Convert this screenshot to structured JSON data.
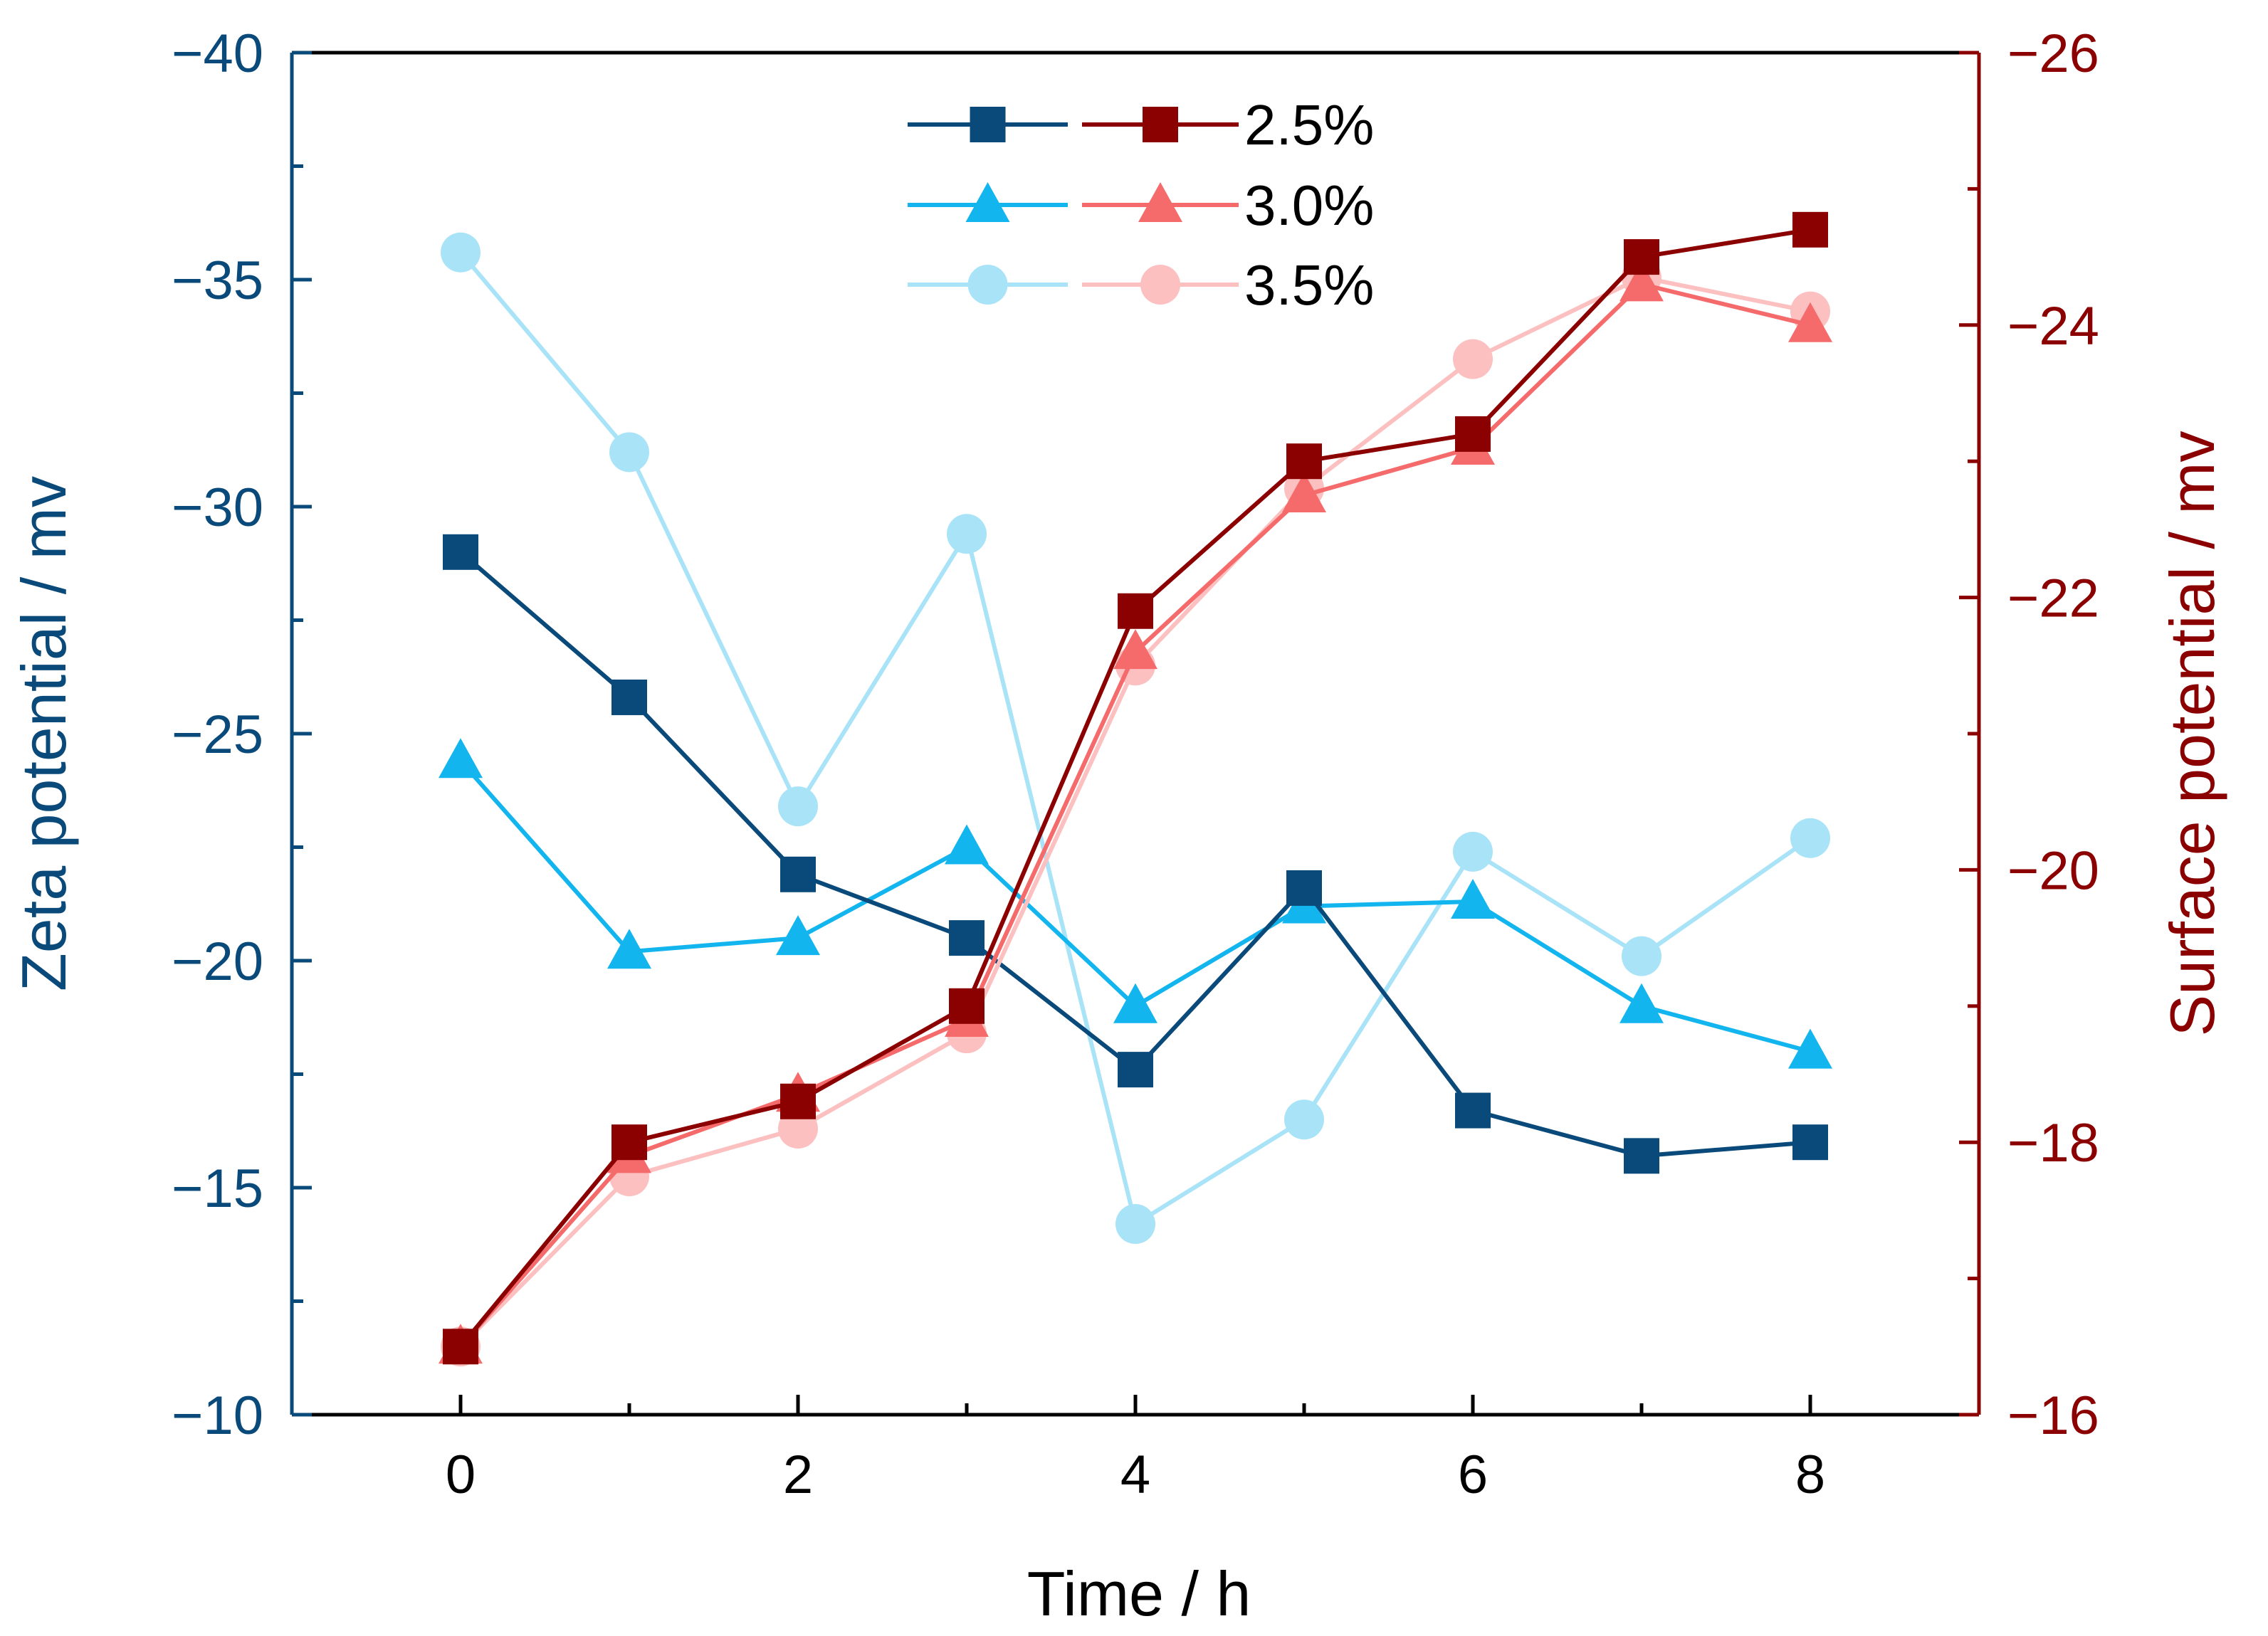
{
  "chart_data": {
    "type": "line",
    "x": [
      0,
      1,
      2,
      3,
      4,
      5,
      6,
      7,
      8
    ],
    "xlabel": "Time / h",
    "xlim": [
      -1,
      9
    ],
    "xticks": [
      0,
      2,
      4,
      6,
      8
    ],
    "xtick_labels": [
      "0",
      "2",
      "4",
      "6",
      "8"
    ],
    "left_axis": {
      "label": "Zeta potential / mv",
      "range": [
        -10,
        -40
      ],
      "ticks": [
        -10,
        -15,
        -20,
        -25,
        -30,
        -35,
        -40
      ],
      "tick_labels": [
        "−10",
        "−15",
        "−20",
        "−25",
        "−30",
        "−35",
        "−40"
      ],
      "color": "#0a4a7a"
    },
    "right_axis": {
      "label": "Surface potential / mv",
      "range": [
        -16,
        -26
      ],
      "ticks": [
        -16,
        -18,
        -20,
        -22,
        -24,
        -26
      ],
      "tick_labels": [
        "−16",
        "−18",
        "−20",
        "−22",
        "−24",
        "−26"
      ],
      "color": "#8b0000"
    },
    "series": [
      {
        "name": "2.5% zeta",
        "legend": "2.5%",
        "axis": "left",
        "marker": "square",
        "color": "#0a4a7a",
        "values": [
          -29.0,
          -25.8,
          -21.9,
          -20.5,
          -17.6,
          -21.6,
          -16.7,
          -15.7,
          -16.0
        ]
      },
      {
        "name": "3.0% zeta",
        "legend": "3.0%",
        "axis": "left",
        "marker": "triangle",
        "color": "#13b5ef",
        "values": [
          -24.4,
          -20.2,
          -20.5,
          -22.5,
          -19.0,
          -21.2,
          -21.3,
          -19.0,
          -18.0
        ]
      },
      {
        "name": "3.5% zeta",
        "legend": "3.5%",
        "axis": "left",
        "marker": "circle",
        "color": "#a8e3f8",
        "values": [
          -35.6,
          -31.2,
          -23.4,
          -29.4,
          -14.2,
          -16.5,
          -22.4,
          -20.1,
          -22.7
        ]
      },
      {
        "name": "2.5% surface",
        "legend": "2.5%",
        "axis": "right",
        "marker": "square",
        "color": "#8b0000",
        "values": [
          -16.5,
          -18.0,
          -18.3,
          -19.0,
          -21.9,
          -23.0,
          -23.2,
          -24.5,
          -24.7
        ]
      },
      {
        "name": "3.0% surface",
        "legend": "3.0%",
        "axis": "right",
        "marker": "triangle",
        "color": "#f56b6b",
        "values": [
          -16.5,
          -17.9,
          -18.35,
          -18.9,
          -21.6,
          -22.75,
          -23.1,
          -24.3,
          -24.0
        ]
      },
      {
        "name": "3.5% surface",
        "legend": "3.5%",
        "axis": "right",
        "marker": "circle",
        "color": "#fcc0c0",
        "values": [
          -16.5,
          -17.75,
          -18.1,
          -18.8,
          -21.5,
          -22.8,
          -23.75,
          -24.35,
          -24.1
        ]
      }
    ],
    "legend": {
      "position": "top-center",
      "entries": [
        {
          "label": "2.5%",
          "left_series": 0,
          "right_series": 3
        },
        {
          "label": "3.0%",
          "left_series": 1,
          "right_series": 4
        },
        {
          "label": "3.5%",
          "left_series": 2,
          "right_series": 5
        }
      ]
    }
  }
}
